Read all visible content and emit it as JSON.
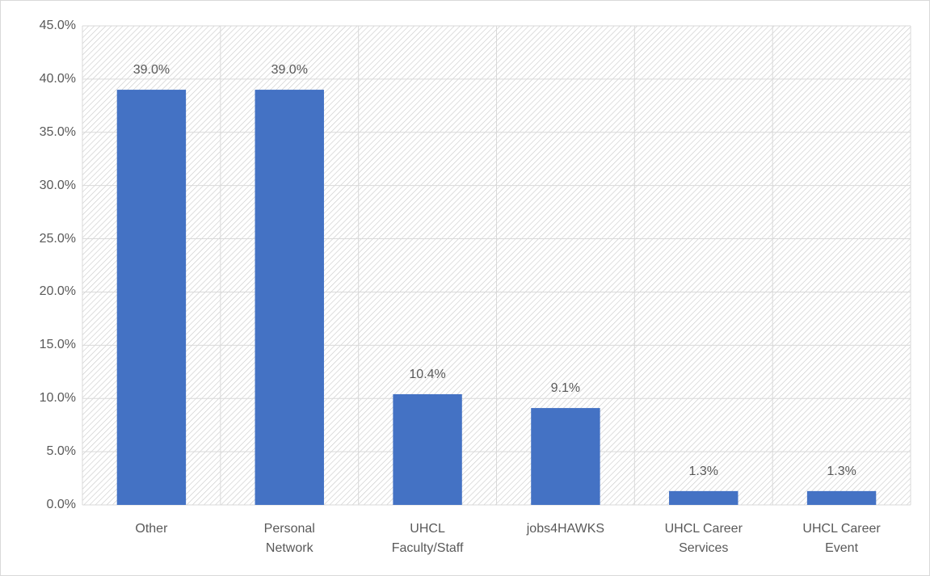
{
  "chart_data": {
    "type": "bar",
    "categories": [
      "Other",
      "Personal Network",
      "UHCL Faculty/Staff",
      "jobs4HAWKS",
      "UHCL Career Services",
      "UHCL Career Event"
    ],
    "values": [
      39.0,
      39.0,
      10.4,
      9.1,
      1.3,
      1.3
    ],
    "value_labels": [
      "39.0%",
      "39.0%",
      "10.4%",
      "9.1%",
      "1.3%",
      "1.3%"
    ],
    "color": "#4472c4",
    "ylim": [
      0,
      45
    ],
    "yticks": [
      {
        "value": 0,
        "label": "0.0%"
      },
      {
        "value": 5,
        "label": "5.0%"
      },
      {
        "value": 10,
        "label": "10.0%"
      },
      {
        "value": 15,
        "label": "15.0%"
      },
      {
        "value": 20,
        "label": "20.0%"
      },
      {
        "value": 25,
        "label": "25.0%"
      },
      {
        "value": 30,
        "label": "30.0%"
      },
      {
        "value": 35,
        "label": "35.0%"
      },
      {
        "value": 40,
        "label": "40.0%"
      },
      {
        "value": 45,
        "label": "45.0%"
      }
    ],
    "grid": true
  }
}
